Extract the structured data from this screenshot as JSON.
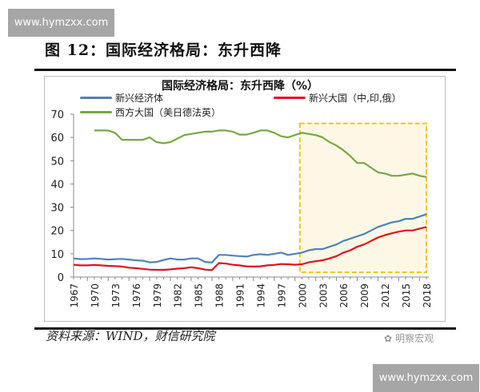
{
  "watermark": "www.hymzxx.com",
  "figure_title": "图 12：国际经济格局：东升西降",
  "source": "资料来源：WIND，财信研究院",
  "brand": "明察宏观",
  "colors": {
    "blue": "#4f81bd",
    "red": "#e3101e",
    "green": "#77a843",
    "highlight_border": "#f0c419",
    "highlight_fill": "#fdf8e6"
  },
  "chart_data": {
    "type": "line",
    "title": "国际经济格局：东升西降（%）",
    "xlabel": "",
    "ylabel": "",
    "ylim": [
      0,
      70
    ],
    "yticks": [
      "0",
      "10",
      "20",
      "30",
      "40",
      "50",
      "60",
      "70"
    ],
    "xticks": [
      "1967",
      "1970",
      "1973",
      "1976",
      "1979",
      "1982",
      "1985",
      "1988",
      "1991",
      "1994",
      "1997",
      "2000",
      "2003",
      "2006",
      "2009",
      "2012",
      "2015",
      "2018"
    ],
    "x_start": 1967,
    "x_end": 2018,
    "highlight": {
      "x": [
        1999.7,
        2018
      ],
      "y": [
        2,
        66
      ]
    },
    "series": [
      {
        "name": "新兴经济体",
        "color": "#4f81bd",
        "start": 1967,
        "values": [
          8,
          7.7,
          7.8,
          8,
          7.8,
          7.5,
          7.7,
          7.8,
          7.5,
          7.2,
          7,
          6.3,
          6.5,
          7.3,
          8,
          7.5,
          7.5,
          8,
          8,
          6.5,
          6.2,
          9.5,
          9.5,
          9.2,
          9,
          8.8,
          9.5,
          9.8,
          9.5,
          10,
          10.5,
          9.5,
          10,
          10.5,
          11.5,
          12,
          12,
          13,
          14,
          15.5,
          16.5,
          17.5,
          18.5,
          20,
          21.5,
          22.5,
          23.5,
          24,
          25,
          25,
          26,
          27
        ]
      },
      {
        "name": "新兴大国（中,印,俄）",
        "color": "#e3101e",
        "start": 1967,
        "values": [
          5.3,
          5,
          5,
          5.2,
          5,
          4.8,
          4.7,
          4.5,
          4,
          3.8,
          3.5,
          3.2,
          3.1,
          3.1,
          3.3,
          3.6,
          3.8,
          4.2,
          3.8,
          3.2,
          3,
          6,
          5.8,
          5.3,
          5,
          4.6,
          4.5,
          4.6,
          5,
          5.2,
          5.6,
          5.5,
          5.3,
          5.5,
          6.3,
          6.8,
          7.2,
          8,
          9,
          10.5,
          11.5,
          13,
          14,
          15.5,
          17,
          18,
          18.8,
          19.5,
          20,
          20,
          20.8,
          21.5
        ]
      },
      {
        "name": "西方大国（美日德法英）",
        "color": "#77a843",
        "start": 1970,
        "values": [
          63,
          63,
          63,
          62,
          59,
          59,
          59,
          59,
          60,
          58,
          57.5,
          58,
          59.5,
          61,
          61.5,
          62,
          62.5,
          62.5,
          63,
          63,
          62.5,
          61.2,
          61.2,
          62,
          63,
          63,
          62,
          60.5,
          60,
          61,
          62,
          61.5,
          61,
          60,
          58,
          56.5,
          54.5,
          52,
          49,
          49,
          47,
          45,
          44.5,
          43.5,
          43.5,
          44,
          44.5,
          43.5,
          43
        ]
      }
    ],
    "legend_placement": "top"
  }
}
